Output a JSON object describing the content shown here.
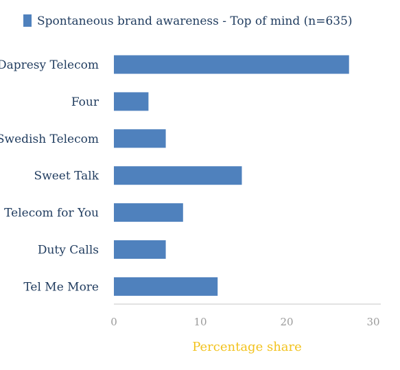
{
  "chart_data": {
    "type": "bar",
    "orientation": "horizontal",
    "categories": [
      "Dapresy Telecom",
      "Four",
      "Swedish Telecom",
      "Sweet Talk",
      "Telecom for You",
      "Duty Calls",
      "Tel Me More"
    ],
    "series": [
      {
        "name": "Spontaneous brand awareness - Top of mind (n=635)",
        "values": [
          27.2,
          4,
          6,
          14.8,
          8,
          6,
          12
        ]
      }
    ],
    "xlabel": "Percentage share",
    "ylabel": "",
    "xlim": [
      0,
      30
    ],
    "xticks": [
      0,
      10,
      20,
      30
    ],
    "grid": false,
    "legend": "top-left",
    "colors": {
      "bar": "#4f81bd",
      "axis_line": "#d9d9d9",
      "axis_title": "#f2c21c",
      "category_text": "#1f3b5e",
      "tick_text": "#9a9a9a"
    }
  }
}
